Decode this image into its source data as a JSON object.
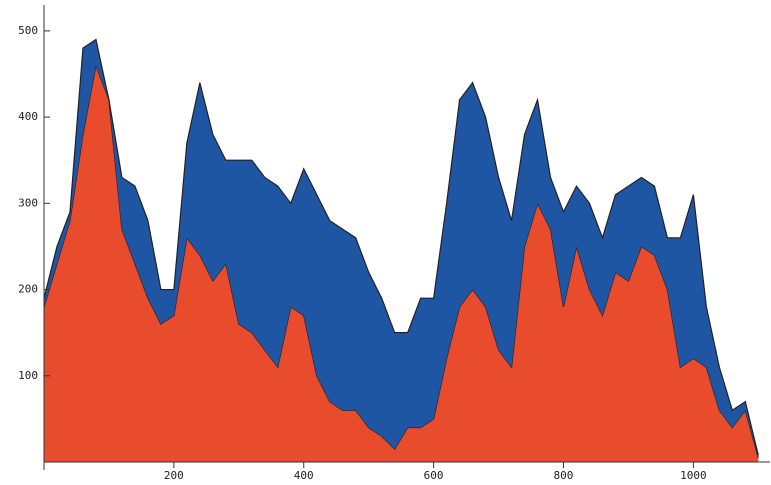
{
  "chart_data": {
    "type": "stacked_area",
    "x": [
      0,
      20,
      40,
      60,
      80,
      100,
      120,
      140,
      160,
      180,
      200,
      220,
      240,
      260,
      280,
      300,
      320,
      340,
      360,
      380,
      400,
      420,
      440,
      460,
      480,
      500,
      520,
      540,
      560,
      580,
      600,
      620,
      640,
      660,
      680,
      700,
      720,
      740,
      760,
      780,
      800,
      820,
      840,
      860,
      880,
      900,
      920,
      940,
      960,
      980,
      1000,
      1020,
      1040,
      1060,
      1080,
      1100
    ],
    "series": [
      {
        "color": "#e84c2c",
        "values": [
          180,
          230,
          280,
          380,
          460,
          420,
          270,
          230,
          190,
          160,
          170,
          260,
          240,
          210,
          230,
          160,
          150,
          130,
          110,
          180,
          170,
          100,
          70,
          60,
          60,
          40,
          30,
          15,
          40,
          40,
          50,
          120,
          180,
          200,
          180,
          130,
          110,
          250,
          300,
          270,
          180,
          250,
          200,
          170,
          220,
          210,
          250,
          240,
          200,
          110,
          120,
          110,
          60,
          40,
          60,
          5
        ]
      },
      {
        "color": "#1f56a4",
        "values": [
          10,
          20,
          10,
          100,
          30,
          0,
          60,
          90,
          90,
          40,
          30,
          110,
          200,
          170,
          120,
          190,
          200,
          200,
          210,
          120,
          170,
          210,
          210,
          210,
          200,
          180,
          160,
          135,
          110,
          150,
          140,
          180,
          240,
          240,
          220,
          200,
          170,
          130,
          120,
          60,
          110,
          70,
          100,
          90,
          90,
          110,
          80,
          80,
          60,
          150,
          190,
          70,
          50,
          20,
          10,
          3
        ]
      }
    ],
    "xlim": [
      0,
      1118
    ],
    "ylim": [
      0,
      530
    ],
    "xticks": [
      200,
      400,
      600,
      800,
      1000
    ],
    "yticks": [
      100,
      200,
      300,
      400,
      500
    ]
  }
}
